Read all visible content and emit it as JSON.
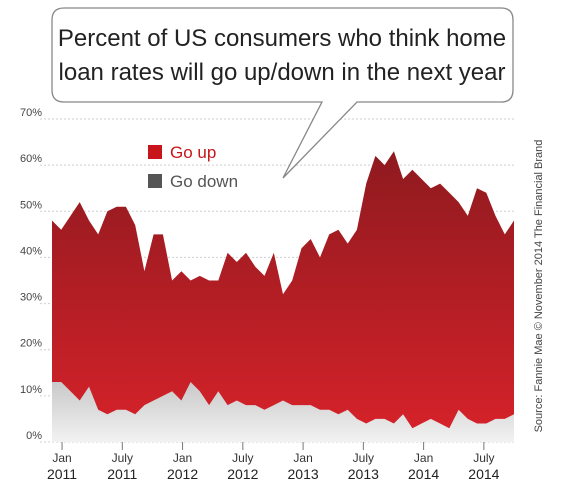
{
  "title_lines": [
    "Percent of US consumers who think home",
    "loan rates will go up/down in the next year"
  ],
  "source": "Source: Fannie Mae © November 2014 The Financial Brand",
  "colors": {
    "up_top": "#8e1a1f",
    "up_bottom": "#d8222a",
    "down_top": "#c9c9c9",
    "down_bottom": "#f2f2f2",
    "legend_up": "#c8151b",
    "legend_down": "#555555",
    "grid": "#cfcfcf",
    "bubble_stroke": "#888888"
  },
  "chart_data": {
    "type": "area",
    "ylim": [
      0,
      70
    ],
    "yticks": [
      0,
      10,
      20,
      30,
      40,
      50,
      60,
      70
    ],
    "ytick_labels": [
      "0%",
      "10%",
      "20%",
      "30%",
      "40%",
      "50%",
      "60%",
      "70%"
    ],
    "xticks": [
      {
        "month": "Jan",
        "year": "2011",
        "x": 0
      },
      {
        "month": "July",
        "year": "2011",
        "x": 6
      },
      {
        "month": "Jan",
        "year": "2012",
        "x": 12
      },
      {
        "month": "July",
        "year": "2012",
        "x": 18
      },
      {
        "month": "Jan",
        "year": "2013",
        "x": 24
      },
      {
        "month": "July",
        "year": "2013",
        "x": 30
      },
      {
        "month": "Jan",
        "year": "2014",
        "x": 36
      },
      {
        "month": "July",
        "year": "2014",
        "x": 42
      }
    ],
    "x_start": -1,
    "x_end": 45,
    "series": [
      {
        "name": "Go up",
        "values": [
          48,
          46,
          49,
          52,
          48,
          45,
          50,
          51,
          51,
          47,
          37,
          45,
          45,
          35,
          37,
          35,
          36,
          35,
          35,
          41,
          39,
          41,
          38,
          36,
          41,
          32,
          35,
          42,
          44,
          40,
          45,
          46,
          43,
          46,
          56,
          62,
          60,
          63,
          57,
          59,
          57,
          55,
          56,
          54,
          52,
          49,
          55,
          54,
          49,
          45,
          48
        ]
      },
      {
        "name": "Go down",
        "values": [
          13,
          13,
          11,
          9,
          12,
          7,
          6,
          7,
          7,
          6,
          8,
          9,
          10,
          11,
          9,
          13,
          11,
          8,
          11,
          8,
          9,
          8,
          8,
          7,
          8,
          9,
          8,
          8,
          8,
          7,
          7,
          6,
          7,
          5,
          4,
          5,
          5,
          4,
          6,
          3,
          4,
          5,
          4,
          3,
          7,
          5,
          4,
          4,
          5,
          5,
          6
        ]
      }
    ]
  }
}
